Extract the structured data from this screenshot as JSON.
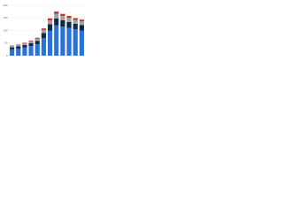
{
  "chart_data": {
    "type": "bar",
    "stacked": true,
    "categories": [
      null,
      null,
      null,
      null,
      null,
      null,
      null,
      null,
      null,
      null,
      null,
      null
    ],
    "series": [
      {
        "color": "#2a72d8",
        "values": [
          25,
          28,
          32,
          38,
          45,
          70,
          100,
          120,
          115,
          110,
          105,
          100
        ]
      },
      {
        "color": "#0e2a47",
        "values": [
          8,
          9,
          10,
          12,
          14,
          20,
          25,
          28,
          26,
          24,
          22,
          22
        ]
      },
      {
        "color": "#a3a3a3",
        "values": [
          5,
          5,
          6,
          7,
          8,
          12,
          15,
          18,
          17,
          16,
          15,
          14
        ]
      },
      {
        "color": "#c9302c",
        "values": [
          2,
          2,
          3,
          3,
          4,
          6,
          8,
          9,
          8,
          8,
          7,
          7
        ]
      }
    ],
    "ylim": [
      0,
      200
    ],
    "yticks": [
      0,
      50,
      100,
      150,
      200
    ],
    "grid": true
  }
}
